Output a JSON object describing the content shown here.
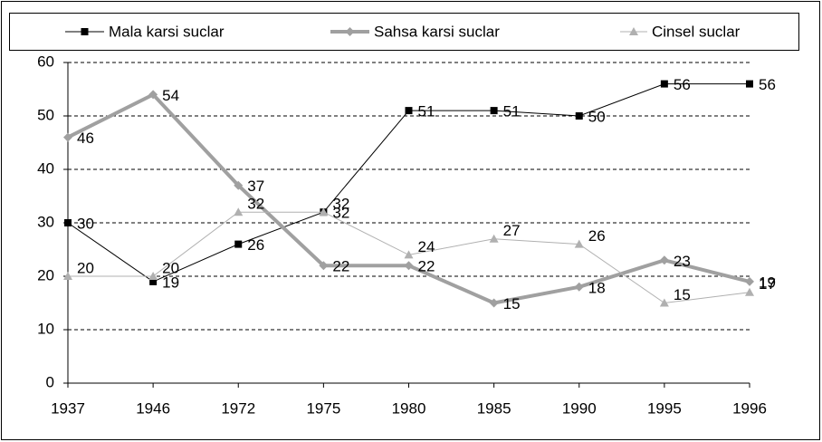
{
  "chart_data": {
    "type": "line",
    "categories": [
      "1937",
      "1946",
      "1972",
      "1975",
      "1980",
      "1985",
      "1990",
      "1995",
      "1996"
    ],
    "series": [
      {
        "name": "Mala karsi suclar",
        "color": "#000000",
        "values": [
          30,
          19,
          26,
          32,
          51,
          51,
          50,
          56,
          56
        ]
      },
      {
        "name": "Sahsa karsi suclar",
        "color": "#a0a0a0",
        "values": [
          46,
          54,
          37,
          22,
          22,
          15,
          18,
          23,
          19
        ]
      },
      {
        "name": "Cinsel suclar",
        "color": "#b0b0b0",
        "values": [
          20,
          20,
          32,
          32,
          24,
          27,
          26,
          15,
          17
        ]
      }
    ],
    "ylim": [
      0,
      60
    ],
    "yticks": [
      0,
      10,
      20,
      30,
      40,
      50,
      60
    ],
    "grid": true,
    "legend": "top"
  }
}
